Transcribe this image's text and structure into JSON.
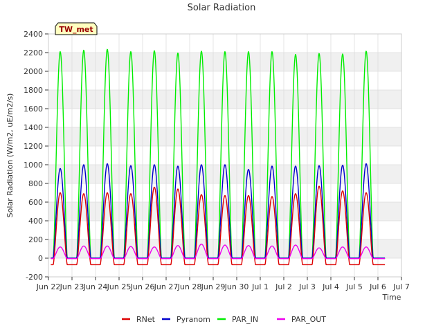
{
  "chart_data": {
    "type": "line",
    "title": "Solar Radiation",
    "xlabel": "Time",
    "ylabel": "Solar Radiation (W/m2, uE/m2/s)",
    "station_label": "TW_met",
    "ylim": [
      -200,
      2400
    ],
    "xlim": [
      0,
      15
    ],
    "x_ticks": [
      {
        "v": 0,
        "label": "Jun 22"
      },
      {
        "v": 1,
        "label": "Jun 23"
      },
      {
        "v": 2,
        "label": "Jun 24"
      },
      {
        "v": 3,
        "label": "Jun 25"
      },
      {
        "v": 4,
        "label": "Jun 26"
      },
      {
        "v": 5,
        "label": "Jun 27"
      },
      {
        "v": 6,
        "label": "Jun 28"
      },
      {
        "v": 7,
        "label": "Jun 29"
      },
      {
        "v": 8,
        "label": "Jun 30"
      },
      {
        "v": 9,
        "label": "Jul 1"
      },
      {
        "v": 10,
        "label": "Jul 2"
      },
      {
        "v": 11,
        "label": "Jul 3"
      },
      {
        "v": 12,
        "label": "Jul 4"
      },
      {
        "v": 13,
        "label": "Jul 5"
      },
      {
        "v": 14,
        "label": "Jul 6"
      },
      {
        "v": 15,
        "label": "Jul 7"
      }
    ],
    "y_ticks": [
      -200,
      0,
      200,
      400,
      600,
      800,
      1000,
      1200,
      1400,
      1600,
      1800,
      2000,
      2200,
      2400
    ],
    "x_days": [
      0.5,
      1.5,
      2.5,
      3.5,
      4.5,
      5.5,
      6.5,
      7.5,
      8.5,
      9.5,
      10.5,
      11.5,
      12.5,
      13.5
    ],
    "data_end": 14.3,
    "series": [
      {
        "name": "RNet",
        "color": "#dd0000",
        "night": -70,
        "peaks": [
          700,
          690,
          700,
          690,
          760,
          740,
          680,
          670,
          670,
          660,
          690,
          770,
          720,
          700
        ]
      },
      {
        "name": "Pyranom",
        "color": "#0000cc",
        "night": 0,
        "peaks": [
          960,
          1000,
          1010,
          990,
          1000,
          985,
          1000,
          1000,
          950,
          985,
          985,
          990,
          995,
          1010
        ]
      },
      {
        "name": "PAR_IN",
        "color": "#00ee00",
        "night": 0,
        "peaks": [
          2210,
          2225,
          2235,
          2210,
          2220,
          2195,
          2215,
          2210,
          2210,
          2210,
          2180,
          2190,
          2185,
          2215
        ]
      },
      {
        "name": "PAR_OUT",
        "color": "#ee00ee",
        "night": -5,
        "peaks": [
          120,
          130,
          130,
          125,
          120,
          135,
          150,
          140,
          135,
          130,
          140,
          110,
          120,
          120
        ]
      }
    ]
  }
}
